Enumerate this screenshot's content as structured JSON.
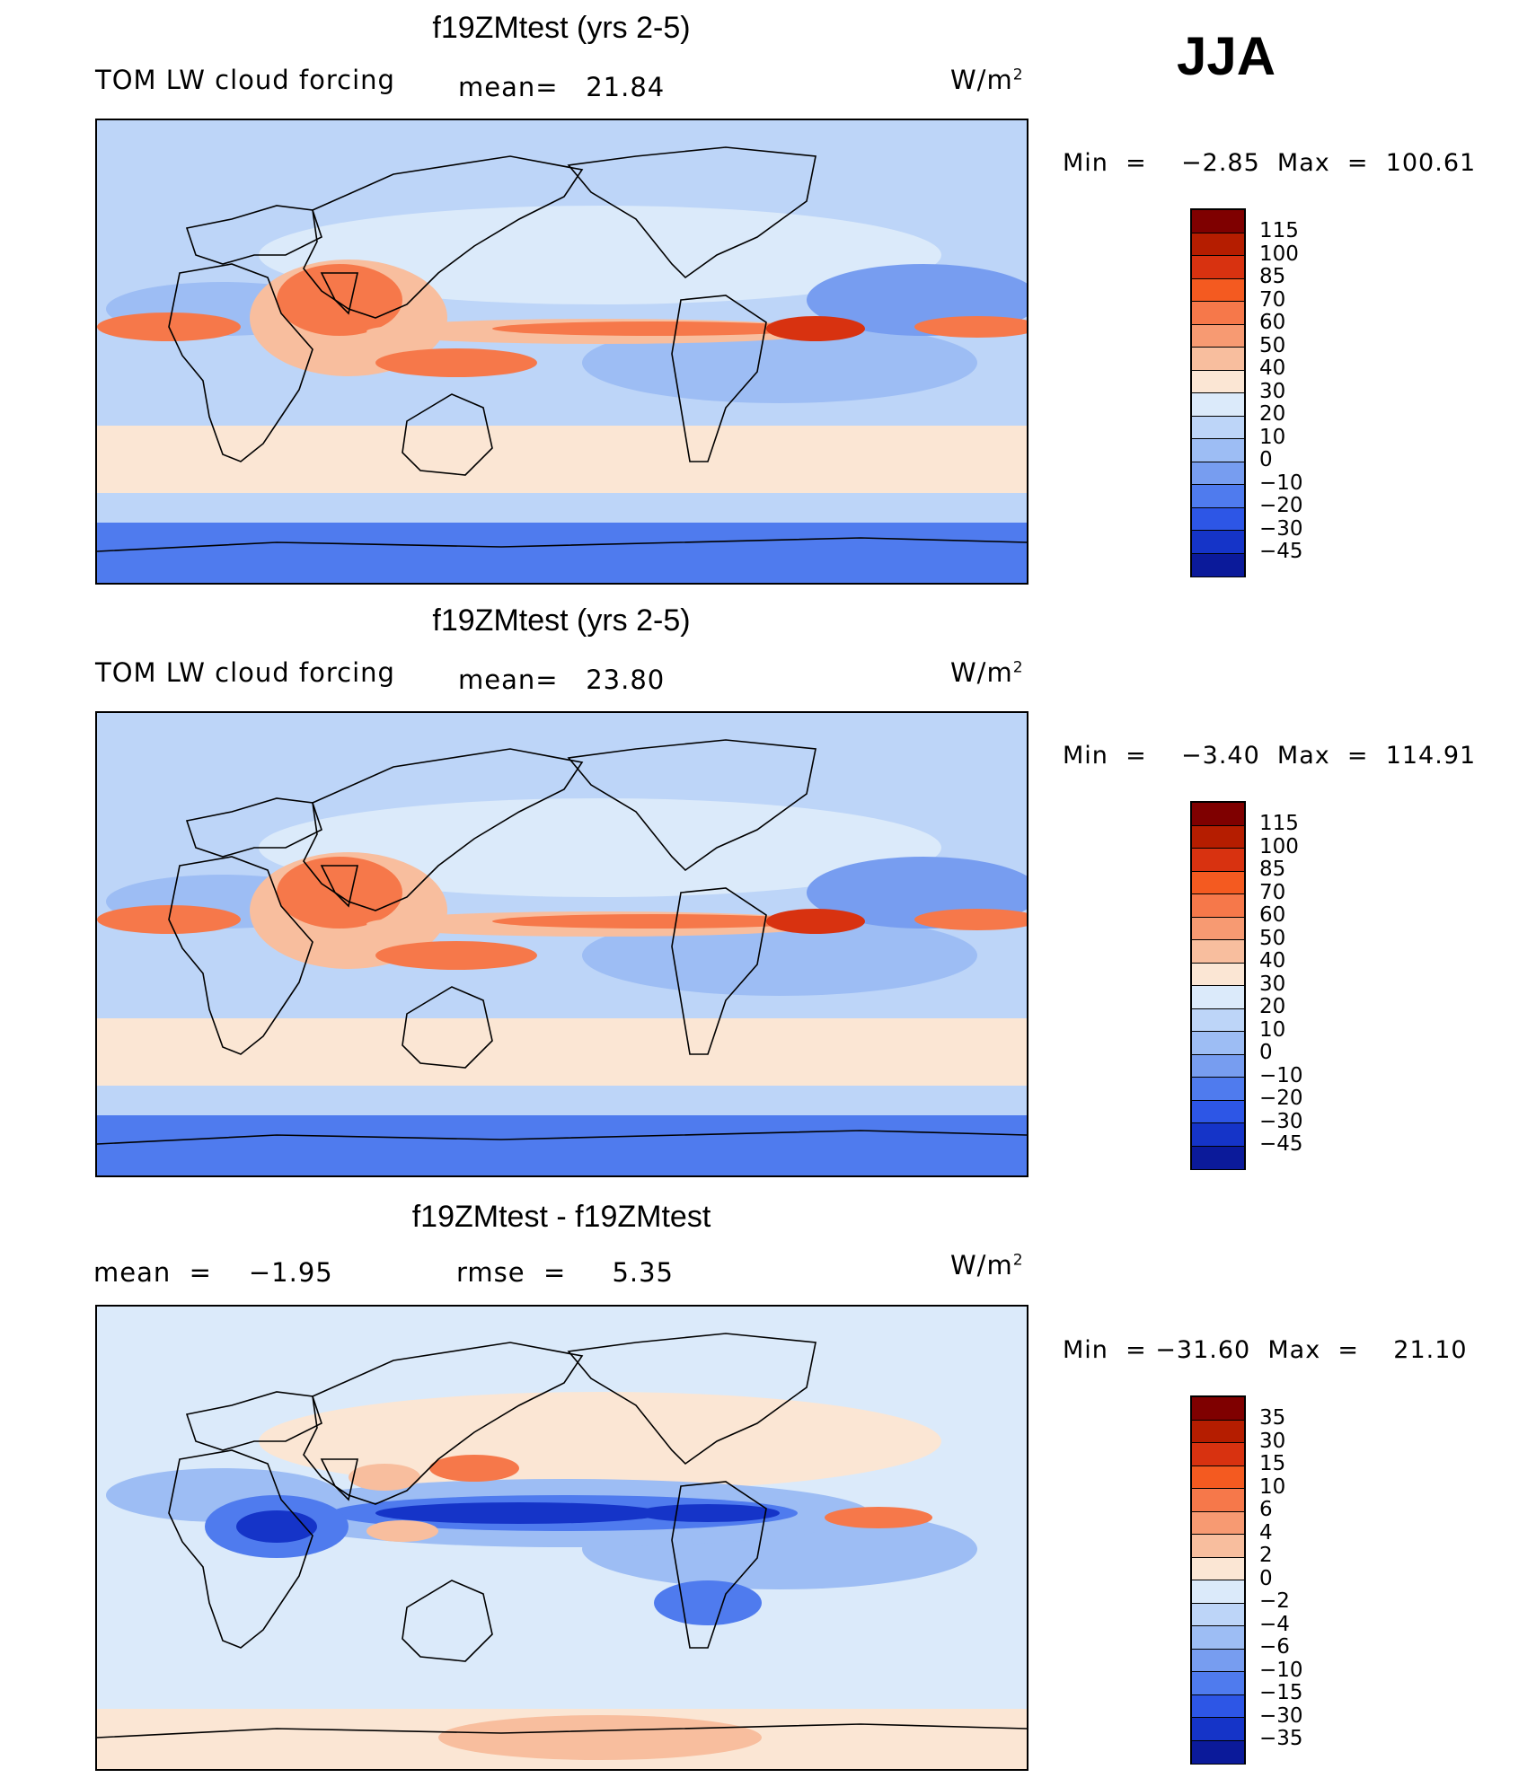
{
  "season": "JJA",
  "panels": [
    {
      "title": "f19ZMtest (yrs 2-5)",
      "variable": "TOM LW cloud forcing",
      "stat": "mean=   21.84",
      "units": "W/m",
      "units_exp": "2",
      "minmax": "Min  =    −2.85  Max  =  100.61",
      "levels": [
        "115",
        "100",
        "85",
        "70",
        "60",
        "50",
        "40",
        "30",
        "20",
        "10",
        "0",
        "−10",
        "−20",
        "−30",
        "−45"
      ],
      "colors": [
        "#7f0000",
        "#b51d00",
        "#d83210",
        "#f45a20",
        "#f6784a",
        "#f79a72",
        "#f8be9e",
        "#fbe6d4",
        "#dbeafa",
        "#bdd5f8",
        "#9dbdf4",
        "#779df0",
        "#4f7bee",
        "#2d56e6",
        "#1534c8",
        "#0b1a9a"
      ],
      "fields": {
        "bg": "#bdd5f8",
        "oceanBand": "#dbeafa",
        "south": "#fbe6d4",
        "warm1": "#f8be9e",
        "warm2": "#f6784a",
        "warm3": "#d83210",
        "cool1": "#9dbdf4",
        "cool2": "#779df0",
        "cool3": "#4f7bee"
      }
    },
    {
      "title": "f19ZMtest (yrs 2-5)",
      "variable": "TOM LW cloud forcing",
      "stat": "mean=   23.80",
      "units": "W/m",
      "units_exp": "2",
      "minmax": "Min  =    −3.40  Max  =  114.91",
      "levels": [
        "115",
        "100",
        "85",
        "70",
        "60",
        "50",
        "40",
        "30",
        "20",
        "10",
        "0",
        "−10",
        "−20",
        "−30",
        "−45"
      ],
      "colors": [
        "#7f0000",
        "#b51d00",
        "#d83210",
        "#f45a20",
        "#f6784a",
        "#f79a72",
        "#f8be9e",
        "#fbe6d4",
        "#dbeafa",
        "#bdd5f8",
        "#9dbdf4",
        "#779df0",
        "#4f7bee",
        "#2d56e6",
        "#1534c8",
        "#0b1a9a"
      ],
      "fields": {
        "bg": "#bdd5f8",
        "oceanBand": "#dbeafa",
        "south": "#fbe6d4",
        "warm1": "#f8be9e",
        "warm2": "#f6784a",
        "warm3": "#d83210",
        "cool1": "#9dbdf4",
        "cool2": "#779df0",
        "cool3": "#4f7bee"
      }
    },
    {
      "title": "f19ZMtest - f19ZMtest",
      "variable": "mean  =    −1.95",
      "stat": "rmse  =     5.35",
      "units": "W/m",
      "units_exp": "2",
      "minmax": "Min  = −31.60  Max  =    21.10",
      "levels": [
        "35",
        "30",
        "15",
        "10",
        "6",
        "4",
        "2",
        "0",
        "−2",
        "−4",
        "−6",
        "−10",
        "−15",
        "−30",
        "−35"
      ],
      "colors": [
        "#7f0000",
        "#b51d00",
        "#d83210",
        "#f45a20",
        "#f6784a",
        "#f79a72",
        "#f8be9e",
        "#fbe6d4",
        "#dbeafa",
        "#bdd5f8",
        "#9dbdf4",
        "#779df0",
        "#4f7bee",
        "#2d56e6",
        "#1534c8",
        "#0b1a9a"
      ],
      "fields": {
        "bg": "#dbeafa",
        "oceanBand": "#fbe6d4",
        "south": "#dbeafa",
        "warm1": "#f8be9e",
        "warm2": "#f6784a",
        "warm3": "#d83210",
        "cool1": "#9dbdf4",
        "cool2": "#4f7bee",
        "cool3": "#1534c8"
      }
    }
  ]
}
